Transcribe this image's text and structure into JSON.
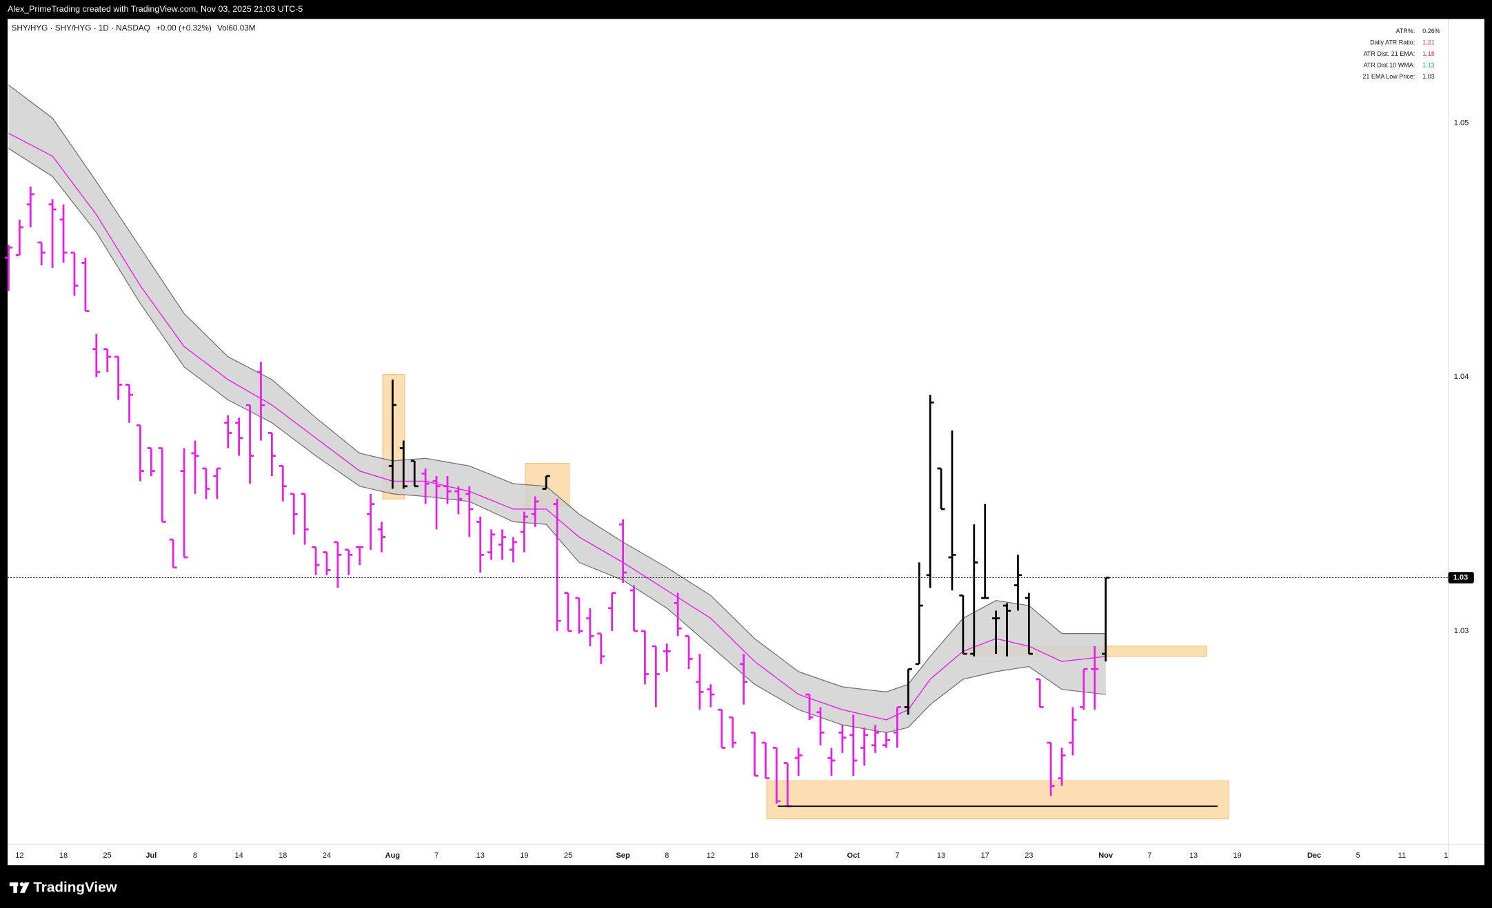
{
  "header": {
    "credit": "Alex_PrimeTrading created with TradingView.com, Nov 03, 2025 21:03 UTC-5"
  },
  "legend": {
    "symbol": "SHY/HYG · SHY/HYG · 1D · NASDAQ",
    "change": "+0.00 (+0.32%)",
    "volume": "Vol60.03M"
  },
  "indicator_table": {
    "rows": [
      {
        "label": "ATR%:",
        "value": "0.26%",
        "color": "#131722"
      },
      {
        "label": "Daily ATR Ratio:",
        "value": "1.21",
        "color": "#f23645"
      },
      {
        "label": "ATR Dist. 21 EMA:",
        "value": "1.18",
        "color": "#f23645"
      },
      {
        "label": "ATR Dist.10 WMA:",
        "value": "1.13",
        "color": "#22ab94"
      },
      {
        "label": "21 EMA Low Price:",
        "value": "1.03",
        "color": "#131722"
      }
    ]
  },
  "footer": {
    "logo": "TradingView"
  },
  "chart_data": {
    "type": "ohlc",
    "x": [
      0,
      1,
      2,
      3,
      4,
      5,
      6,
      7,
      8,
      9,
      10,
      11,
      12,
      13,
      14,
      15,
      16,
      17,
      18,
      19,
      20,
      21,
      22,
      23,
      24,
      25,
      26,
      27,
      28,
      29,
      30,
      31,
      32,
      33,
      34,
      35,
      36,
      37,
      38,
      39,
      40,
      41,
      42,
      43,
      44,
      45,
      46,
      47,
      48,
      49,
      50,
      51,
      52,
      53,
      54,
      55,
      56,
      57,
      58,
      59,
      60,
      61,
      62,
      63,
      64,
      65,
      66,
      67,
      68,
      69,
      70,
      71,
      72,
      73,
      74,
      75,
      76,
      77,
      78,
      79,
      80,
      81,
      82,
      83,
      84,
      85,
      86,
      87,
      88,
      89,
      90,
      91,
      92,
      93,
      94,
      95,
      96,
      97,
      98,
      99,
      100
    ],
    "open": [
      1.0447,
      1.0448,
      1.0468,
      1.0453,
      1.0468,
      1.0462,
      1.0449,
      1.0445,
      1.0411,
      1.0411,
      1.0408,
      1.0397,
      1.0381,
      1.0372,
      1.0372,
      1.0336,
      1.0363,
      1.037,
      1.0364,
      1.0361,
      1.0382,
      1.0382,
      1.0389,
      1.0402,
      1.0378,
      1.0365,
      1.0354,
      1.0354,
      1.0333,
      1.0331,
      1.0335,
      1.0332,
      1.0333,
      1.0346,
      1.034,
      1.0365,
      1.0372,
      1.0367,
      1.0362,
      1.0359,
      1.0357,
      1.0355,
      1.0354,
      1.0343,
      1.0331,
      1.0334,
      1.0332,
      1.0339,
      1.0346,
      1.0356,
      1.035,
      1.0315,
      1.0313,
      1.0305,
      1.0299,
      1.0309,
      1.0342,
      1.0316,
      1.03,
      1.0294,
      1.0292,
      1.0311,
      1.0298,
      1.028,
      1.0277,
      1.0269,
      1.0266,
      1.0287,
      1.026,
      1.0256,
      1.0254,
      1.0248,
      1.025,
      1.0275,
      1.0268,
      1.025,
      1.026,
      1.0259,
      1.0254,
      1.0255,
      1.0255,
      1.026,
      1.027,
      1.0287,
      1.0322,
      1.0364,
      1.0329,
      1.0314,
      1.0291,
      1.0313,
      1.0305,
      1.031,
      1.0318,
      1.0313,
      1.0281,
      1.0256,
      1.0242,
      1.0256,
      1.027,
      1.0285,
      1.0291
    ],
    "high": [
      1.0452,
      1.0462,
      1.0475,
      1.0453,
      1.047,
      1.0468,
      1.0449,
      1.0447,
      1.0417,
      1.0411,
      1.0408,
      1.0397,
      1.0381,
      1.0372,
      1.0372,
      1.0336,
      1.0372,
      1.0375,
      1.0364,
      1.0364,
      1.0385,
      1.0384,
      1.0389,
      1.0406,
      1.0378,
      1.0365,
      1.0354,
      1.0354,
      1.0333,
      1.0331,
      1.0335,
      1.0332,
      1.0333,
      1.0354,
      1.0343,
      1.0399,
      1.0375,
      1.0367,
      1.0364,
      1.0361,
      1.0361,
      1.0357,
      1.0357,
      1.0345,
      1.034,
      1.034,
      1.0337,
      1.0347,
      1.0353,
      1.0361,
      1.0352,
      1.0315,
      1.0313,
      1.0309,
      1.0299,
      1.0315,
      1.0344,
      1.0318,
      1.03,
      1.0294,
      1.0295,
      1.0315,
      1.0298,
      1.0291,
      1.0279,
      1.0269,
      1.0266,
      1.0291,
      1.026,
      1.0256,
      1.0254,
      1.0248,
      1.0254,
      1.0275,
      1.027,
      1.0254,
      1.0263,
      1.0267,
      1.0262,
      1.0263,
      1.026,
      1.027,
      1.0285,
      1.0327,
      1.0393,
      1.0364,
      1.0379,
      1.0314,
      1.0342,
      1.035,
      1.0308,
      1.0311,
      1.033,
      1.0315,
      1.0281,
      1.0256,
      1.0254,
      1.027,
      1.0285,
      1.0294,
      1.0321
    ],
    "low": [
      1.0434,
      1.0448,
      1.0459,
      1.0444,
      1.0443,
      1.0445,
      1.0432,
      1.0426,
      1.04,
      1.0402,
      1.0391,
      1.0382,
      1.0359,
      1.0361,
      1.0343,
      1.0325,
      1.0329,
      1.0354,
      1.0352,
      1.0352,
      1.0372,
      1.0369,
      1.0358,
      1.0375,
      1.0361,
      1.0351,
      1.0338,
      1.0334,
      1.0322,
      1.0322,
      1.0317,
      1.0322,
      1.0326,
      1.0332,
      1.0331,
      1.0356,
      1.0356,
      1.0357,
      1.035,
      1.034,
      1.035,
      1.0346,
      1.0337,
      1.0323,
      1.0328,
      1.0328,
      1.0327,
      1.0331,
      1.0341,
      1.0356,
      1.03,
      1.03,
      1.0299,
      1.0294,
      1.0287,
      1.03,
      1.0319,
      1.03,
      1.0279,
      1.027,
      1.0284,
      1.0298,
      1.0285,
      1.0269,
      1.027,
      1.0254,
      1.0254,
      1.0271,
      1.0243,
      1.0242,
      1.0232,
      1.0231,
      1.0243,
      1.0265,
      1.0255,
      1.0243,
      1.0252,
      1.0243,
      1.0247,
      1.0252,
      1.0254,
      1.0254,
      1.0267,
      1.0287,
      1.0317,
      1.0348,
      1.0316,
      1.0291,
      1.029,
      1.0313,
      1.0291,
      1.029,
      1.0308,
      1.0291,
      1.027,
      1.0235,
      1.0239,
      1.0251,
      1.0269,
      1.0269,
      1.0288
    ],
    "close": [
      1.0451,
      1.0459,
      1.0472,
      1.0449,
      1.0466,
      1.0449,
      1.0436,
      1.0426,
      1.0402,
      1.0408,
      1.0397,
      1.0393,
      1.0363,
      1.0363,
      1.0343,
      1.0325,
      1.0329,
      1.0369,
      1.0356,
      1.0364,
      1.0378,
      1.0376,
      1.0369,
      1.0389,
      1.0369,
      1.0357,
      1.0346,
      1.034,
      1.0326,
      1.0324,
      1.033,
      1.033,
      1.0333,
      1.035,
      1.0337,
      1.0389,
      1.0357,
      1.0357,
      1.0358,
      1.0357,
      1.0355,
      1.0352,
      1.0348,
      1.033,
      1.0338,
      1.0337,
      1.0335,
      1.0345,
      1.0351,
      1.0361,
      1.0304,
      1.03,
      1.03,
      1.0298,
      1.029,
      1.0315,
      1.0323,
      1.03,
      1.0283,
      1.0283,
      1.0292,
      1.0301,
      1.0289,
      1.0276,
      1.0275,
      1.0254,
      1.0256,
      1.028,
      1.0243,
      1.0242,
      1.0233,
      1.0231,
      1.0251,
      1.0266,
      1.026,
      1.0249,
      1.0258,
      1.0249,
      1.0259,
      1.026,
      1.0257,
      1.027,
      1.0285,
      1.031,
      1.039,
      1.0348,
      1.033,
      1.0291,
      1.0327,
      1.0313,
      1.0305,
      1.0308,
      1.0322,
      1.0291,
      1.027,
      1.0239,
      1.0251,
      1.0265,
      1.0285,
      1.0285,
      1.0321
    ],
    "colors": [
      "#e91ee9",
      "#e91ee9",
      "#e91ee9",
      "#e91ee9",
      "#e91ee9",
      "#e91ee9",
      "#e91ee9",
      "#e91ee9",
      "#e91ee9",
      "#e91ee9",
      "#e91ee9",
      "#e91ee9",
      "#e91ee9",
      "#e91ee9",
      "#e91ee9",
      "#e91ee9",
      "#e91ee9",
      "#e91ee9",
      "#e91ee9",
      "#e91ee9",
      "#e91ee9",
      "#e91ee9",
      "#e91ee9",
      "#e91ee9",
      "#e91ee9",
      "#e91ee9",
      "#e91ee9",
      "#e91ee9",
      "#e91ee9",
      "#e91ee9",
      "#e91ee9",
      "#e91ee9",
      "#e91ee9",
      "#e91ee9",
      "#e91ee9",
      "#000000",
      "#000000",
      "#000000",
      "#e91ee9",
      "#e91ee9",
      "#e91ee9",
      "#e91ee9",
      "#e91ee9",
      "#e91ee9",
      "#e91ee9",
      "#e91ee9",
      "#e91ee9",
      "#e91ee9",
      "#e91ee9",
      "#000000",
      "#e91ee9",
      "#e91ee9",
      "#e91ee9",
      "#e91ee9",
      "#e91ee9",
      "#e91ee9",
      "#e91ee9",
      "#e91ee9",
      "#e91ee9",
      "#e91ee9",
      "#e91ee9",
      "#e91ee9",
      "#e91ee9",
      "#e91ee9",
      "#e91ee9",
      "#e91ee9",
      "#e91ee9",
      "#e91ee9",
      "#e91ee9",
      "#e91ee9",
      "#e91ee9",
      "#e91ee9",
      "#e91ee9",
      "#e91ee9",
      "#e91ee9",
      "#e91ee9",
      "#e91ee9",
      "#e91ee9",
      "#e91ee9",
      "#e91ee9",
      "#e91ee9",
      "#e91ee9",
      "#000000",
      "#000000",
      "#000000",
      "#000000",
      "#000000",
      "#000000",
      "#000000",
      "#000000",
      "#000000",
      "#000000",
      "#000000",
      "#000000",
      "#e91ee9",
      "#e91ee9",
      "#e91ee9",
      "#e91ee9",
      "#e91ee9",
      "#e91ee9",
      "#000000"
    ],
    "band": {
      "x": [
        0,
        4,
        8,
        12,
        16,
        20,
        24,
        28,
        32,
        35,
        38,
        42,
        46,
        49,
        52,
        56,
        60,
        64,
        68,
        72,
        76,
        80,
        82,
        84,
        87,
        90,
        93,
        96,
        100
      ],
      "upper": [
        1.0515,
        1.0502,
        1.0477,
        1.0451,
        1.0425,
        1.0408,
        1.0399,
        1.0384,
        1.037,
        1.0367,
        1.0368,
        1.0365,
        1.0358,
        1.0357,
        1.0346,
        1.0335,
        1.0325,
        1.0314,
        1.0297,
        1.0284,
        1.0278,
        1.0276,
        1.0279,
        1.029,
        1.0305,
        1.0312,
        1.031,
        1.0299,
        1.0299
      ],
      "mid": [
        1.0496,
        1.0487,
        1.0464,
        1.0436,
        1.0412,
        1.0399,
        1.0389,
        1.0376,
        1.0363,
        1.0359,
        1.0359,
        1.0355,
        1.0348,
        1.0348,
        1.0337,
        1.0327,
        1.0316,
        1.0305,
        1.0288,
        1.0275,
        1.0269,
        1.0265,
        1.0269,
        1.0281,
        1.0292,
        1.0297,
        1.0294,
        1.0288,
        1.029
      ],
      "lower": [
        1.049,
        1.0479,
        1.0457,
        1.0429,
        1.0404,
        1.0391,
        1.0382,
        1.0369,
        1.0357,
        1.0354,
        1.0353,
        1.0351,
        1.0343,
        1.0342,
        1.0327,
        1.032,
        1.0309,
        1.0294,
        1.0279,
        1.0269,
        1.0263,
        1.026,
        1.0262,
        1.0271,
        1.0281,
        1.0284,
        1.0286,
        1.0277,
        1.0275
      ],
      "fill": "#d1d1d1",
      "edge": "#707070",
      "color": "#e91ee9"
    },
    "zones": [
      {
        "x": [
          34.1,
          36.1
        ],
        "y": [
          1.0352,
          1.0401
        ],
        "color": "#fbd39a"
      },
      {
        "x": [
          47.1,
          51.1
        ],
        "y": [
          1.0349,
          1.0366
        ],
        "color": "#fbd39a"
      },
      {
        "x": [
          87.4,
          109.2
        ],
        "y": [
          1.029,
          1.0294
        ],
        "color": "#fbd39a"
      },
      {
        "x": [
          69.1,
          111.2
        ],
        "y": [
          1.0226,
          1.0241
        ],
        "color": "#fbd39a"
      }
    ],
    "levels": [
      {
        "x": [
          70.1,
          110.2
        ],
        "value": 1.0231,
        "color": "#000000"
      }
    ],
    "last_price": {
      "value": 1.0321,
      "label": "1.03"
    },
    "xlim": [
      -0.09,
      131.22
    ],
    "ylim": [
      1.0216,
      1.0541
    ],
    "xticks": [
      {
        "value": 1,
        "label": "12"
      },
      {
        "value": 5,
        "label": "18"
      },
      {
        "value": 9,
        "label": "25"
      },
      {
        "value": 13,
        "label": "Jul"
      },
      {
        "value": 17,
        "label": "8"
      },
      {
        "value": 21,
        "label": "14"
      },
      {
        "value": 25,
        "label": "18"
      },
      {
        "value": 29,
        "label": "24"
      },
      {
        "value": 35,
        "label": "Aug"
      },
      {
        "value": 39,
        "label": "7"
      },
      {
        "value": 43,
        "label": "13"
      },
      {
        "value": 47,
        "label": "19"
      },
      {
        "value": 51,
        "label": "25"
      },
      {
        "value": 56,
        "label": "Sep"
      },
      {
        "value": 60,
        "label": "8"
      },
      {
        "value": 64,
        "label": "12"
      },
      {
        "value": 68,
        "label": "18"
      },
      {
        "value": 72,
        "label": "24"
      },
      {
        "value": 77,
        "label": "Oct"
      },
      {
        "value": 81,
        "label": "7"
      },
      {
        "value": 85,
        "label": "13"
      },
      {
        "value": 89,
        "label": "17"
      },
      {
        "value": 93,
        "label": "23"
      },
      {
        "value": 100,
        "label": "Nov"
      },
      {
        "value": 104,
        "label": "7"
      },
      {
        "value": 108,
        "label": "13"
      },
      {
        "value": 112,
        "label": "19"
      },
      {
        "value": 119,
        "label": "Dec"
      },
      {
        "value": 123,
        "label": "5"
      },
      {
        "value": 127,
        "label": "11"
      },
      {
        "value": 131,
        "label": "1"
      }
    ],
    "yticks": [
      1.05,
      1.04,
      1.03
    ],
    "grid": false
  }
}
